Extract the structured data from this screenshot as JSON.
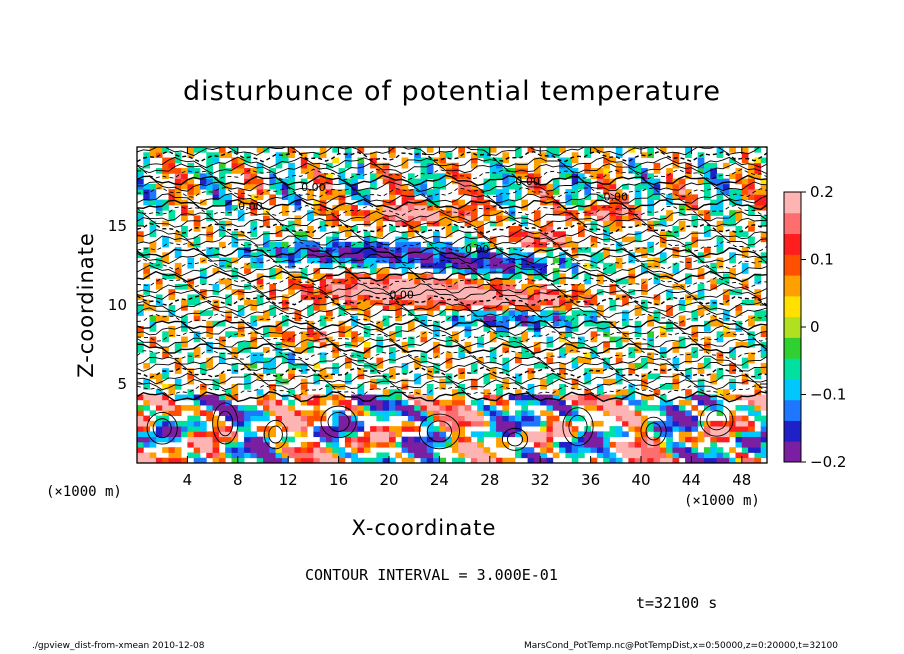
{
  "chart_data": {
    "type": "heatmap",
    "title": "disturbunce of potential temperature",
    "xlabel": "X-coordinate",
    "ylabel": "Z-coordinate",
    "x_unit": "(×1000 m)",
    "z_unit": "(×1000 m)",
    "xlim": [
      0,
      50
    ],
    "ylim": [
      0,
      20
    ],
    "x_ticks": [
      4,
      8,
      12,
      16,
      20,
      24,
      28,
      32,
      36,
      40,
      44,
      48
    ],
    "y_ticks": [
      5,
      10,
      15
    ],
    "colorbar": {
      "min": -0.2,
      "max": 0.2,
      "ticks": [
        "0.2",
        "0.1",
        "0",
        "−0.1",
        "−0.2"
      ],
      "tick_values": [
        0.2,
        0.1,
        0,
        -0.1,
        -0.2
      ],
      "colors": [
        "#7b1fa2",
        "#2020c8",
        "#1e78ff",
        "#00c8ff",
        "#00e0a0",
        "#30d030",
        "#b0e020",
        "#ffe000",
        "#ffa000",
        "#ff5000",
        "#ff1e1e",
        "#ff6e6e",
        "#ffb4b4"
      ]
    },
    "contour_labels": [
      "0.00"
    ],
    "contour_interval_text": "CONTOUR INTERVAL = 3.000E-01",
    "time_text": "t=32100 s",
    "footer_left": "./gpview_dist-from-xmean   2010-12-08",
    "footer_right": "MarsCond_PotTemp.nc@PotTempDist,x=0:50000,z=0:20000,t=32100"
  }
}
